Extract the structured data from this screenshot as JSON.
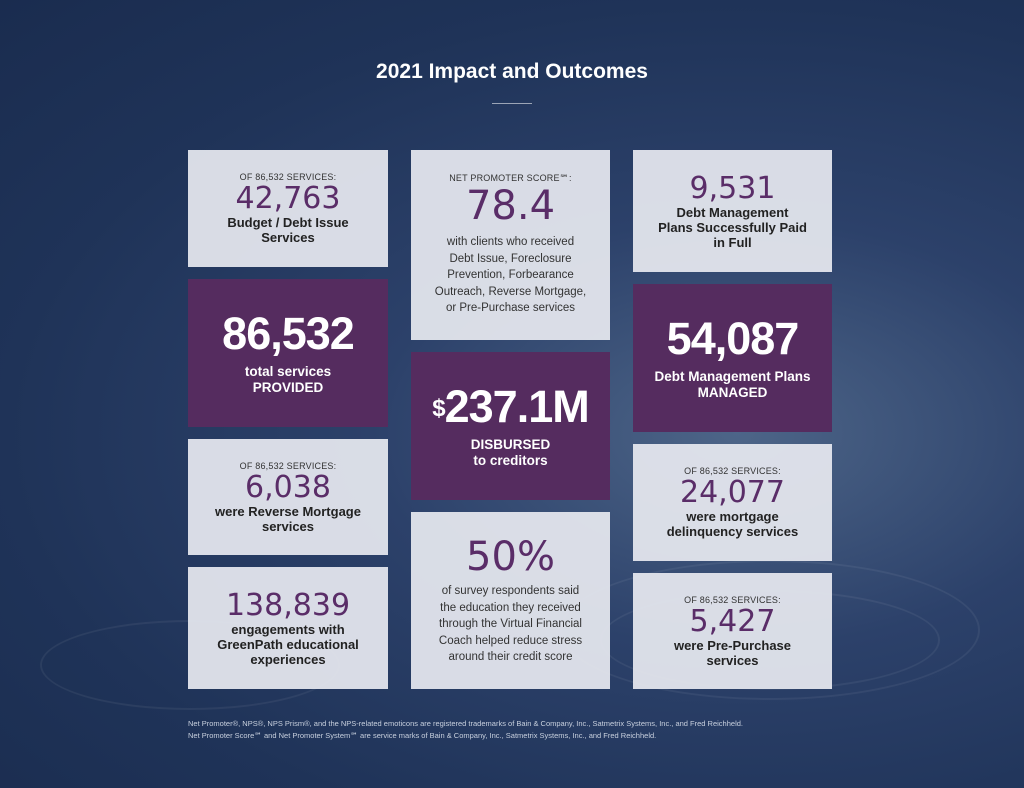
{
  "header": {
    "title": "2021 Impact and Outcomes"
  },
  "cards": {
    "budget_debt": {
      "kicker": "OF 86,532 SERVICES:",
      "number": "42,763",
      "label_line1": "Budget / Debt Issue",
      "label_line2": "Services"
    },
    "nps": {
      "kicker": "NET PROMOTER SCORE℠:",
      "number": "78.4",
      "lines": [
        "with clients who received",
        "Debt Issue, Foreclosure",
        "Prevention, Forbearance",
        "Outreach, Reverse Mortgage,",
        "or Pre-Purchase services"
      ]
    },
    "dmp_paid": {
      "number": "9,531",
      "label_line1": "Debt Management",
      "label_line2": "Plans Successfully Paid",
      "label_line3": "in Full"
    },
    "total_services": {
      "number": "86,532",
      "label_line1": "total services",
      "label_line2": "PROVIDED"
    },
    "disbursed": {
      "currency": "$",
      "number": "237.1M",
      "label_line1": "DISBURSED",
      "label_line2": "to creditors"
    },
    "dmp_managed": {
      "number": "54,087",
      "label_line1": "Debt Management Plans",
      "label_line2": "MANAGED"
    },
    "reverse_mortgage": {
      "kicker": "OF 86,532 SERVICES:",
      "number": "6,038",
      "label_line1": "were Reverse Mortgage",
      "label_line2": "services"
    },
    "survey": {
      "number": "50%",
      "lines": [
        "of survey respondents said",
        "the education they received",
        "through the Virtual Financial",
        "Coach helped reduce stress",
        "around their credit score"
      ]
    },
    "mortgage_delinquency": {
      "kicker": "OF 86,532 SERVICES:",
      "number": "24,077",
      "label_line1": "were mortgage",
      "label_line2": "delinquency services"
    },
    "engagements": {
      "number": "138,839",
      "label_line1": "engagements with",
      "label_line2": "GreenPath educational",
      "label_line3": "experiences"
    },
    "pre_purchase": {
      "kicker": "OF 86,532 SERVICES:",
      "number": "5,427",
      "label_line1": "were Pre-Purchase",
      "label_line2": "services"
    }
  },
  "footnote": {
    "line1": "Net Promoter®, NPS®, NPS Prism®, and the NPS-related emoticons are registered trademarks of Bain & Company, Inc., Satmetrix Systems, Inc., and Fred Reichheld.",
    "line2": "Net Promoter Score℠ and Net Promoter System℠ are service marks of Bain & Company, Inc., Satmetrix Systems, Inc., and Fred Reichheld."
  },
  "colors": {
    "accent_purple": "#552c5f",
    "number_purple": "#5a2d68",
    "card_light": "#e4e7ee",
    "background": "#23375c"
  }
}
